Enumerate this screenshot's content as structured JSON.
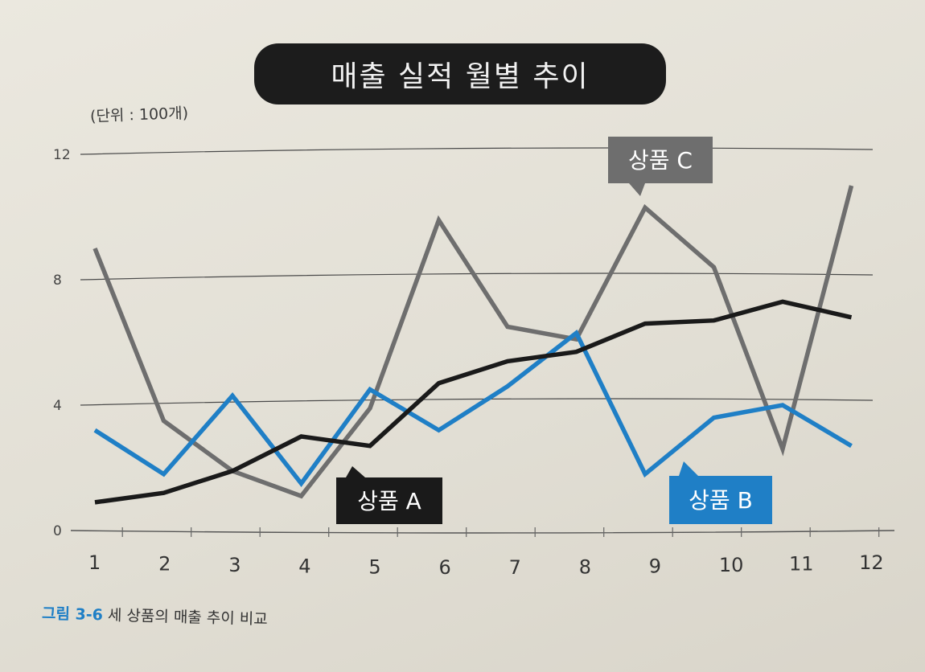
{
  "chart_data": {
    "type": "line",
    "title": "매출 실적 월별 추이",
    "unit_label": "(단위 : 100개)",
    "x": [
      "1",
      "2",
      "3",
      "4",
      "5",
      "6",
      "7",
      "8",
      "9",
      "10",
      "11",
      "12"
    ],
    "ylim": [
      0,
      12
    ],
    "yticks": [
      "0",
      "4",
      "8",
      "12"
    ],
    "grid": true,
    "series": [
      {
        "name": "상품 A",
        "color": "#1a1a1a",
        "values": [
          0.9,
          1.2,
          1.9,
          3.0,
          2.7,
          4.7,
          5.4,
          5.7,
          6.6,
          6.7,
          7.3,
          6.8
        ]
      },
      {
        "name": "상품 B",
        "color": "#1f7fc6",
        "values": [
          3.2,
          1.8,
          4.3,
          1.5,
          4.5,
          3.2,
          4.6,
          6.3,
          1.8,
          3.6,
          4.0,
          2.7
        ]
      },
      {
        "name": "상품 C",
        "color": "#6e6e6e",
        "values": [
          9.0,
          3.5,
          1.9,
          1.1,
          3.9,
          9.9,
          6.5,
          6.1,
          10.3,
          8.4,
          2.6,
          11.0
        ]
      }
    ]
  },
  "caption": {
    "figure_number": "그림 3-6",
    "text": "세 상품의 매출 추이 비교"
  }
}
